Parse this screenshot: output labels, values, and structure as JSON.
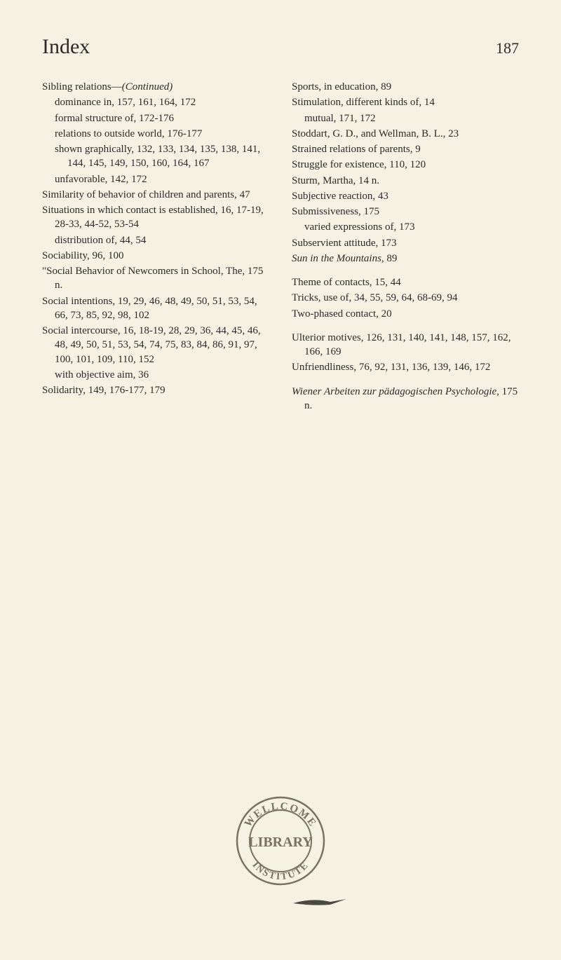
{
  "header": {
    "title": "Index",
    "page_number": "187"
  },
  "left_column": [
    {
      "text": "Sibling relations—(Continued)",
      "italic_ranges": [
        [
          18,
          29
        ]
      ]
    },
    {
      "text": "dominance in, 157, 161, 164, 172",
      "sub": true
    },
    {
      "text": "formal structure of, 172-176",
      "sub": true
    },
    {
      "text": "relations to outside world, 176-177",
      "sub": true
    },
    {
      "text": "shown graphically, 132, 133, 134, 135, 138, 141, 144, 145, 149, 150, 160, 164, 167",
      "sub": true
    },
    {
      "text": "unfavorable, 142, 172",
      "sub": true
    },
    {
      "text": "Similarity of behavior of children and parents, 47"
    },
    {
      "text": "Situations in which contact is established, 16, 17-19, 28-33, 44-52, 53-54"
    },
    {
      "text": "distribution of, 44, 54",
      "sub": true
    },
    {
      "text": "Sociability, 96, 100"
    },
    {
      "text": "\"Social Behavior of Newcomers in School, The, 175 n."
    },
    {
      "text": "Social intentions, 19, 29, 46, 48, 49, 50, 51, 53, 54, 66, 73, 85, 92, 98, 102"
    },
    {
      "text": "Social intercourse, 16, 18-19, 28, 29, 36, 44, 45, 46, 48, 49, 50, 51, 53, 54, 74, 75, 83, 84, 86, 91, 97, 100, 101, 109, 110, 152"
    },
    {
      "text": "with objective aim, 36",
      "sub": true
    },
    {
      "text": "Solidarity, 149, 176-177, 179"
    }
  ],
  "right_column": [
    {
      "text": "Sports, in education, 89"
    },
    {
      "text": "Stimulation, different kinds of, 14"
    },
    {
      "text": "mutual, 171, 172",
      "sub": true
    },
    {
      "text": "Stoddart, G. D., and Wellman, B. L., 23"
    },
    {
      "text": "Strained relations of parents, 9"
    },
    {
      "text": "Struggle for existence, 110, 120"
    },
    {
      "text": "Sturm, Martha, 14 n."
    },
    {
      "text": "Subjective reaction, 43"
    },
    {
      "text": "Submissiveness, 175"
    },
    {
      "text": "varied expressions of, 173",
      "sub": true
    },
    {
      "text": "Subservient attitude, 173"
    },
    {
      "text": "Sun in the Mountains, 89",
      "italic_ranges": [
        [
          0,
          20
        ]
      ]
    },
    {
      "text": "Theme of contacts, 15, 44",
      "gap": true
    },
    {
      "text": "Tricks, use of, 34, 55, 59, 64, 68-69, 94"
    },
    {
      "text": "Two-phased contact, 20"
    },
    {
      "text": "Ulterior motives, 126, 131, 140, 141, 148, 157, 162, 166, 169",
      "gap": true
    },
    {
      "text": "Unfriendliness, 76, 92, 131, 136, 139, 146, 172"
    },
    {
      "text": "Wiener Arbeiten zur pädagogischen Psychologie, 175 n.",
      "italic_ranges": [
        [
          0,
          46
        ]
      ],
      "gap": true
    }
  ],
  "stamp": {
    "top_text": "WELLCOME",
    "middle_text": "LIBRARY",
    "bottom_text": "INSTITUTE",
    "color": "#7a7260"
  }
}
